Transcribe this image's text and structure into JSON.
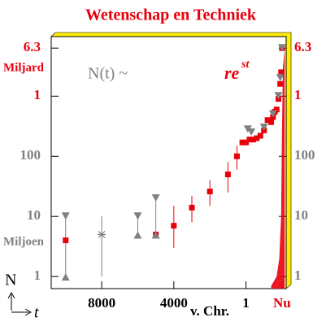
{
  "chart_data": {
    "type": "scatter",
    "title": "Wetenschap en Techniek",
    "annotations": {
      "formula": "N(t) ~",
      "rate_base": "re",
      "rate_exp": "st",
      "upper_unit": "Miljard",
      "lower_unit": "Miljoen",
      "era": "v. Chr."
    },
    "ylabel": "N",
    "xlabel": "t",
    "log_y": true,
    "xlim": [
      -10800,
      2230
    ],
    "ylim": [
      0.63,
      9800
    ],
    "xticks": [
      {
        "value": -8000,
        "label": "8000"
      },
      {
        "value": -4000,
        "label": "4000"
      },
      {
        "value": 1,
        "label": "1"
      },
      {
        "value": 2000,
        "label": "Nu"
      }
    ],
    "yticks": [
      1,
      10,
      100,
      {
        "value": 1000,
        "label": "1"
      },
      {
        "value": 6300,
        "label": "6.3"
      }
    ],
    "series": [
      {
        "marker": "square",
        "color": "#e8000b",
        "x": [
          -10000,
          -5000,
          -4000,
          -3000,
          -2000,
          -1000,
          -500,
          -200,
          1,
          200,
          400,
          600,
          800,
          1000,
          1200,
          1400,
          1500,
          1600,
          1700,
          1800,
          1900,
          1950,
          2000
        ],
        "values": [
          4,
          5,
          7,
          14,
          26,
          50,
          100,
          170,
          170,
          190,
          190,
          200,
          220,
          270,
          400,
          370,
          450,
          550,
          600,
          900,
          1600,
          2500,
          6300
        ],
        "low": [
          null,
          null,
          3,
          8,
          15,
          25,
          60,
          null,
          null,
          null,
          null,
          null,
          null,
          null,
          null,
          null,
          null,
          null,
          null,
          null,
          null,
          null,
          null
        ],
        "high": [
          null,
          null,
          15,
          22,
          40,
          80,
          150,
          null,
          null,
          null,
          null,
          null,
          null,
          null,
          null,
          null,
          null,
          null,
          null,
          null,
          null,
          null,
          null
        ]
      },
      {
        "marker": "triangle-down",
        "color": "#808080",
        "x": [
          -10000,
          -6000,
          -5000,
          100,
          300,
          1000,
          1500,
          1800,
          1900,
          2000
        ],
        "values": [
          10,
          10,
          20,
          280,
          250,
          300,
          500,
          1000,
          2000,
          6300
        ]
      },
      {
        "marker": "triangle-up",
        "color": "#808080",
        "x": [
          -10000,
          -6000,
          -5000
        ],
        "values": [
          1,
          5,
          5
        ]
      },
      {
        "marker": "asterisk",
        "color": "#808080",
        "x": [
          -8000
        ],
        "values": [
          5
        ],
        "low": [
          1
        ],
        "high": [
          10
        ]
      },
      {
        "marker": "area",
        "color": "#e8000b",
        "x": [
          1400,
          1700,
          1850,
          1950,
          2000,
          2050,
          2150
        ],
        "values": [
          0.7,
          1,
          2,
          10,
          300,
          3000,
          6300
        ]
      }
    ]
  }
}
